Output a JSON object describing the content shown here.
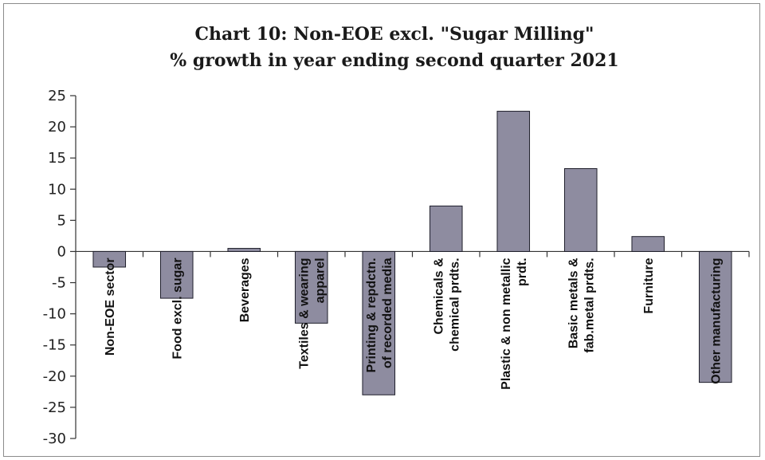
{
  "chart_data": {
    "type": "bar",
    "title": "Chart 10: Non-EOE excl. \"Sugar Milling\"",
    "subtitle": "% growth in year ending second quarter 2021",
    "categories": [
      [
        "Non-EOE sector"
      ],
      [
        "Food excl. sugar"
      ],
      [
        "Beverages"
      ],
      [
        "Textiles & wearing",
        "apparel"
      ],
      [
        "Printing & repdctn.",
        "of recorded media"
      ],
      [
        "Chemicals &",
        "chemical prdts."
      ],
      [
        "Plastic & non metallic",
        "prdt."
      ],
      [
        "Basic metals &",
        "fab.metal prdts."
      ],
      [
        "Furniture"
      ],
      [
        "Other manufacturing"
      ]
    ],
    "values": [
      -2.5,
      -7.5,
      0.5,
      -11.5,
      -23,
      7.3,
      22.5,
      13.3,
      2.4,
      -21
    ],
    "ylim": [
      -30,
      25
    ],
    "yticks": [
      25,
      20,
      15,
      10,
      5,
      0,
      -5,
      -10,
      -15,
      -20,
      -25,
      -30
    ],
    "xlabel": "",
    "ylabel": "",
    "bar_color": "#8e8ca0",
    "bar_edge_color": "#1e1e2a",
    "grid": false
  }
}
